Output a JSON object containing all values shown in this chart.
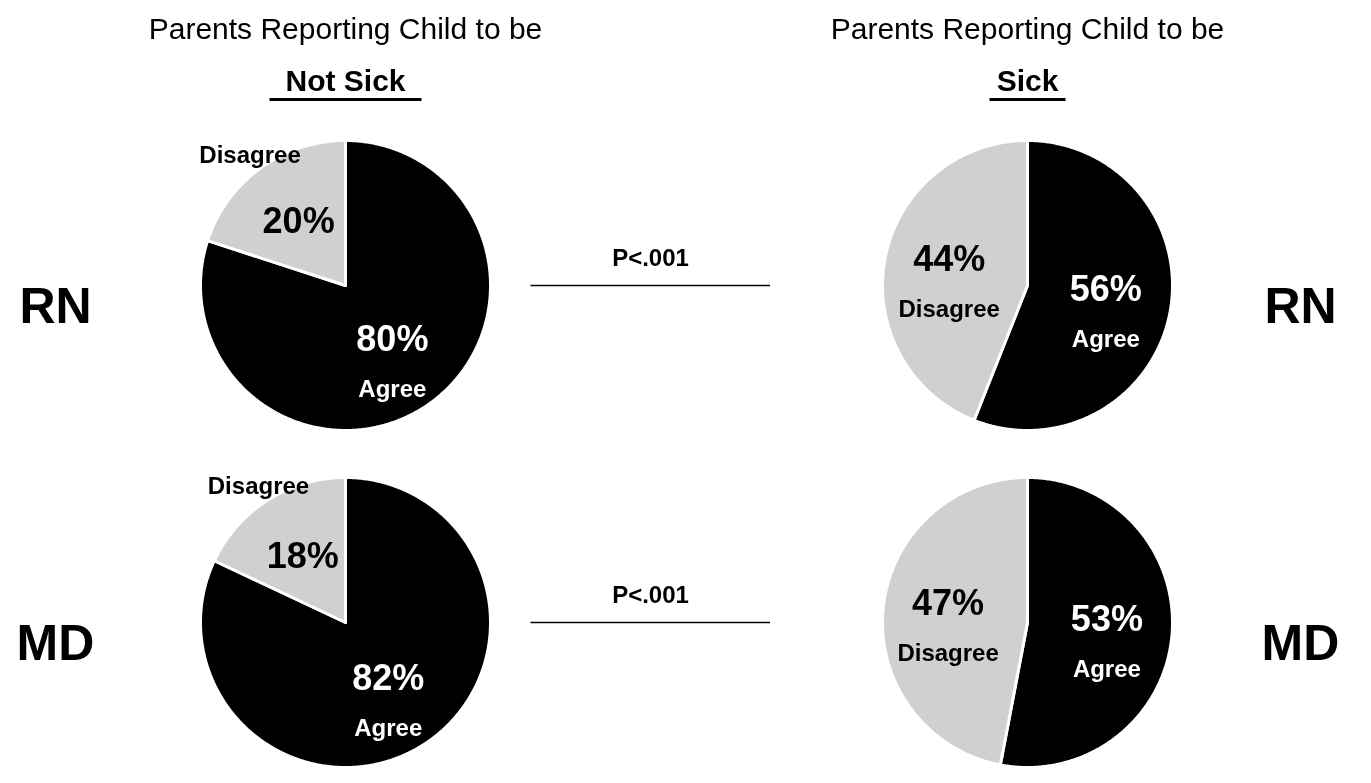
{
  "chart_data": [
    {
      "type": "pie",
      "title": "Parents Reporting Child to be",
      "subtitle": "Not Sick",
      "categories": [
        "Agree",
        "Disagree"
      ],
      "values": [
        80,
        20
      ],
      "colors": [
        "#000000",
        "#d0d0d0"
      ],
      "value_labels": [
        "80%",
        "20%"
      ],
      "annotations": [
        "RN",
        "P<.001"
      ]
    },
    {
      "type": "pie",
      "title": "Parents Reporting Child to be",
      "subtitle": "Sick",
      "categories": [
        "Agree",
        "Disagree"
      ],
      "values": [
        56,
        44
      ],
      "colors": [
        "#000000",
        "#d0d0d0"
      ],
      "value_labels": [
        "56%",
        "44%"
      ],
      "annotations": [
        "RN"
      ]
    },
    {
      "type": "pie",
      "categories": [
        "Agree",
        "Disagree"
      ],
      "values": [
        82,
        18
      ],
      "colors": [
        "#000000",
        "#d0d0d0"
      ],
      "value_labels": [
        "82%",
        "18%"
      ],
      "annotations": [
        "MD",
        "P<.001"
      ]
    },
    {
      "type": "pie",
      "categories": [
        "Agree",
        "Disagree"
      ],
      "values": [
        53,
        47
      ],
      "colors": [
        "#000000",
        "#d0d0d0"
      ],
      "value_labels": [
        "53%",
        "47%"
      ],
      "annotations": [
        "MD"
      ]
    }
  ]
}
